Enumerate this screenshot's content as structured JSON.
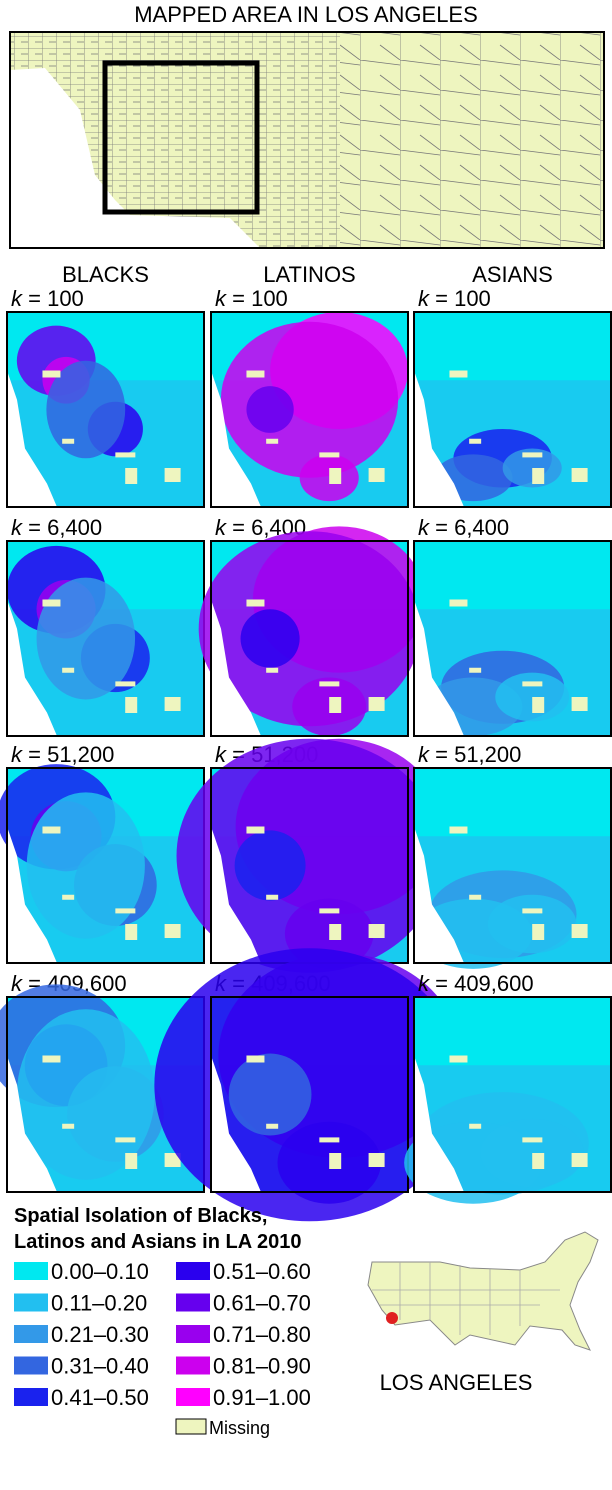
{
  "header": {
    "title": "MAPPED AREA IN LOS ANGELES"
  },
  "columns": [
    "BLACKS",
    "LATINOS",
    "ASIANS"
  ],
  "rows": [
    {
      "var": "k",
      "value": "= 100"
    },
    {
      "var": "k",
      "value": "= 6,400"
    },
    {
      "var": "k",
      "value": "= 51,200"
    },
    {
      "var": "k",
      "value": "= 409,600"
    }
  ],
  "legend": {
    "title": [
      "Spatial Isolation of Blacks,",
      "Latinos and Asians in LA 2010"
    ],
    "items": [
      {
        "label": "0.00–0.10",
        "color": "#00e8f0"
      },
      {
        "label": "0.11–0.20",
        "color": "#22bff0"
      },
      {
        "label": "0.21–0.30",
        "color": "#3399e8"
      },
      {
        "label": "0.31–0.40",
        "color": "#3366e0"
      },
      {
        "label": "0.41–0.50",
        "color": "#1a22ee"
      },
      {
        "label": "0.51–0.60",
        "color": "#2a00ee"
      },
      {
        "label": "0.61–0.70",
        "color": "#6600ee"
      },
      {
        "label": "0.71–0.80",
        "color": "#9900ee"
      },
      {
        "label": "0.81–0.90",
        "color": "#cc00ee"
      },
      {
        "label": "0.91–1.00",
        "color": "#ff00ff"
      }
    ],
    "missing": {
      "label": "Missing",
      "color": "#eef5bf"
    }
  },
  "inset": {
    "label": "LOS ANGELES"
  }
}
